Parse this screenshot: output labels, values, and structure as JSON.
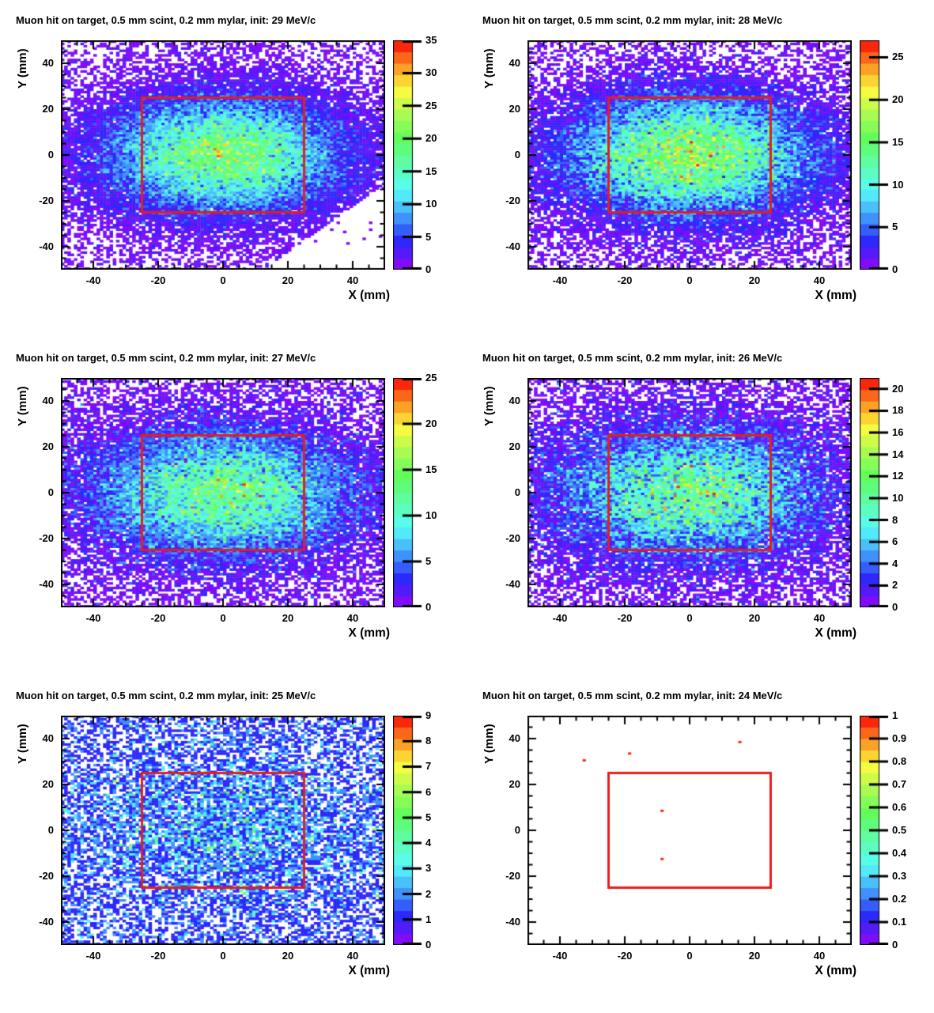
{
  "figure": {
    "grid": "3 rows x 2 columns",
    "background": "#ffffff",
    "frame_color": "#000000",
    "overlay_box_color": "#e61e19"
  },
  "chart_data": [
    {
      "type": "heatmap",
      "title": "Muon hit on target, 0.5 mm scint, 0.2 mm mylar, init: 29 MeV/c",
      "xlabel": "X (mm)",
      "ylabel": "Y (mm)",
      "xlim": [
        -50,
        50
      ],
      "ylim": [
        -50,
        50
      ],
      "xticks": [
        -40,
        -20,
        0,
        20,
        40
      ],
      "yticks": [
        -40,
        -20,
        0,
        20,
        40
      ],
      "minor_tick_step": 5,
      "bins": [
        100,
        100
      ],
      "palette": "root-rainbow",
      "levels": 20,
      "zmin": 0,
      "zmax": 35,
      "colorbar_ticks": [
        0,
        5,
        10,
        15,
        20,
        25,
        30,
        35
      ],
      "distribution": {
        "model": "gaussian-poisson",
        "amplitude": 20,
        "center": [
          0,
          0
        ],
        "sigma_x": 22,
        "sigma_y": 15,
        "background": 0.45,
        "diagonal_cut_x_minus_y": 62
      },
      "overlay_box": {
        "x0": -25,
        "x1": 25,
        "y0": -25,
        "y1": 25
      },
      "seed": 7
    },
    {
      "type": "heatmap",
      "title": "Muon hit on target, 0.5 mm scint, 0.2 mm mylar, init: 28 MeV/c",
      "xlabel": "X (mm)",
      "ylabel": "Y (mm)",
      "xlim": [
        -50,
        50
      ],
      "ylim": [
        -50,
        50
      ],
      "xticks": [
        -40,
        -20,
        0,
        20,
        40
      ],
      "yticks": [
        -40,
        -20,
        0,
        20,
        40
      ],
      "minor_tick_step": 5,
      "bins": [
        100,
        100
      ],
      "palette": "root-rainbow",
      "levels": 20,
      "zmin": 0,
      "zmax": 27,
      "colorbar_ticks": [
        0,
        5,
        10,
        15,
        20,
        25
      ],
      "distribution": {
        "model": "gaussian-poisson",
        "amplitude": 16.5,
        "center": [
          0,
          0
        ],
        "sigma_x": 23,
        "sigma_y": 15.5,
        "background": 0.5
      },
      "overlay_box": {
        "x0": -25,
        "x1": 25,
        "y0": -25,
        "y1": 25
      },
      "seed": 12
    },
    {
      "type": "heatmap",
      "title": "Muon hit on target, 0.5 mm scint, 0.2 mm mylar, init: 27 MeV/c",
      "xlabel": "X (mm)",
      "ylabel": "Y (mm)",
      "xlim": [
        -50,
        50
      ],
      "ylim": [
        -50,
        50
      ],
      "xticks": [
        -40,
        -20,
        0,
        20,
        40
      ],
      "yticks": [
        -40,
        -20,
        0,
        20,
        40
      ],
      "minor_tick_step": 5,
      "bins": [
        100,
        100
      ],
      "palette": "root-rainbow",
      "levels": 20,
      "zmin": 0,
      "zmax": 25,
      "colorbar_ticks": [
        0,
        5,
        10,
        15,
        20,
        25
      ],
      "distribution": {
        "model": "gaussian-poisson",
        "amplitude": 12.5,
        "center": [
          0,
          0
        ],
        "sigma_x": 24,
        "sigma_y": 16,
        "background": 0.6
      },
      "overlay_box": {
        "x0": -25,
        "x1": 25,
        "y0": -25,
        "y1": 25
      },
      "seed": 21
    },
    {
      "type": "heatmap",
      "title": "Muon hit on target, 0.5 mm scint, 0.2 mm mylar, init: 26 MeV/c",
      "xlabel": "X (mm)",
      "ylabel": "Y (mm)",
      "xlim": [
        -50,
        50
      ],
      "ylim": [
        -50,
        50
      ],
      "xticks": [
        -40,
        -20,
        0,
        20,
        40
      ],
      "yticks": [
        -40,
        -20,
        0,
        20,
        40
      ],
      "minor_tick_step": 5,
      "bins": [
        100,
        100
      ],
      "palette": "root-rainbow",
      "levels": 20,
      "zmin": 0,
      "zmax": 21,
      "colorbar_ticks": [
        0,
        2,
        4,
        6,
        8,
        10,
        12,
        14,
        16,
        18,
        20
      ],
      "distribution": {
        "model": "gaussian-poisson",
        "amplitude": 10,
        "center": [
          0,
          0
        ],
        "sigma_x": 25,
        "sigma_y": 17,
        "background": 0.65
      },
      "overlay_box": {
        "x0": -25,
        "x1": 25,
        "y0": -25,
        "y1": 25
      },
      "seed": 33
    },
    {
      "type": "heatmap",
      "title": "Muon hit on target, 0.5 mm scint, 0.2 mm mylar, init: 25 MeV/c",
      "xlabel": "X (mm)",
      "ylabel": "Y (mm)",
      "xlim": [
        -50,
        50
      ],
      "ylim": [
        -50,
        50
      ],
      "xticks": [
        -40,
        -20,
        0,
        20,
        40
      ],
      "yticks": [
        -40,
        -20,
        0,
        20,
        40
      ],
      "minor_tick_step": 5,
      "bins": [
        100,
        100
      ],
      "palette": "root-rainbow",
      "levels": 20,
      "zmin": 0,
      "zmax": 9,
      "colorbar_ticks": [
        0,
        1,
        2,
        3,
        4,
        5,
        6,
        7,
        8,
        9
      ],
      "distribution": {
        "model": "gaussian-poisson",
        "amplitude": 1.2,
        "center": [
          0,
          0
        ],
        "sigma_x": 28,
        "sigma_y": 19,
        "background": 0.7
      },
      "overlay_box": {
        "x0": -25,
        "x1": 25,
        "y0": -25,
        "y1": 25
      },
      "seed": 45
    },
    {
      "type": "heatmap",
      "title": "Muon hit on target, 0.5 mm scint, 0.2 mm mylar, init: 24 MeV/c",
      "xlabel": "X (mm)",
      "ylabel": "Y (mm)",
      "xlim": [
        -50,
        50
      ],
      "ylim": [
        -50,
        50
      ],
      "xticks": [
        -40,
        -20,
        0,
        20,
        40
      ],
      "yticks": [
        -40,
        -20,
        0,
        20,
        40
      ],
      "minor_tick_step": 5,
      "bins": [
        100,
        100
      ],
      "palette": "root-rainbow",
      "levels": 20,
      "zmin": 0,
      "zmax": 1,
      "colorbar_ticks": [
        0,
        0.1,
        0.2,
        0.3,
        0.4,
        0.5,
        0.6,
        0.7,
        0.8,
        0.9,
        1
      ],
      "distribution": {
        "model": "gaussian-poisson",
        "amplitude": 0,
        "center": [
          0,
          0
        ],
        "sigma_x": 28,
        "sigma_y": 19,
        "background": 0
      },
      "points": [
        {
          "x": -33,
          "y": 31,
          "v": 1
        },
        {
          "x": -19,
          "y": 34,
          "v": 1
        },
        {
          "x": 15,
          "y": 39,
          "v": 1
        },
        {
          "x": -9,
          "y": 9,
          "v": 1
        },
        {
          "x": -9,
          "y": -12,
          "v": 1
        }
      ],
      "overlay_box": {
        "x0": -25,
        "x1": 25,
        "y0": -25,
        "y1": 25
      },
      "seed": 5
    }
  ]
}
